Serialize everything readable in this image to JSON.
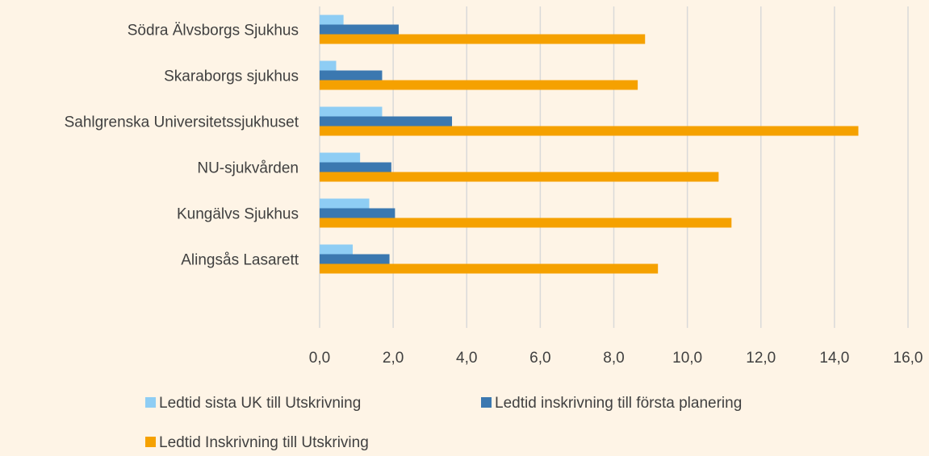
{
  "chart_data": {
    "type": "hbar",
    "categories": [
      "Södra Älvsborgs Sjukhus",
      "Skaraborgs sjukhus",
      "Sahlgrenska Universitetssjukhuset",
      "NU-sjukvården",
      "Kungälvs Sjukhus",
      "Alingsås Lasarett",
      null
    ],
    "series": [
      {
        "name": "Ledtid sista UK till Utskrivning",
        "color": "#8ecdf4",
        "values": [
          0.65,
          0.45,
          1.7,
          1.1,
          1.35,
          0.9,
          null
        ]
      },
      {
        "name": "Ledtid inskrivning till första planering",
        "color": "#3b78b0",
        "values": [
          2.15,
          1.7,
          3.6,
          1.95,
          2.05,
          1.9,
          null
        ]
      },
      {
        "name": "Ledtid Inskrivning till Utskriving",
        "color": "#f5a100",
        "values": [
          8.85,
          8.65,
          14.65,
          10.85,
          11.2,
          9.2,
          null
        ]
      }
    ],
    "xlim": [
      0,
      16
    ],
    "xticks": [
      {
        "value": 0,
        "label": "0,0"
      },
      {
        "value": 2,
        "label": "2,0"
      },
      {
        "value": 4,
        "label": "4,0"
      },
      {
        "value": 6,
        "label": "6,0"
      },
      {
        "value": 8,
        "label": "8,0"
      },
      {
        "value": 10,
        "label": "10,0"
      },
      {
        "value": 12,
        "label": "12,0"
      },
      {
        "value": 14,
        "label": "14,0"
      },
      {
        "value": 16,
        "label": "16,0"
      }
    ],
    "grid": true,
    "legend": "bottom"
  }
}
